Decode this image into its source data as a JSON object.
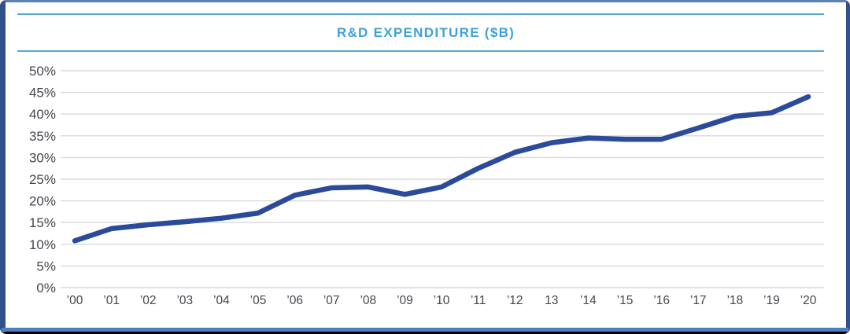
{
  "colors": {
    "title_blue": "#3FA0DC",
    "rule_blue": "#56A8D8",
    "line_navy": "#2B4A99",
    "grid_gray": "#D9D9DC",
    "label_slate": "#45454F",
    "frame_navy": "#34508C",
    "frame_steel_top": "#5B82B3",
    "frame_steel_bottom": "#4A7FC1",
    "frame_black": "#000000",
    "card_white": "#FFFFFF"
  },
  "chart_data": {
    "type": "line",
    "title": "R&D EXPENDITURE ($B)",
    "categories": [
      "’00",
      "’01",
      "’02",
      "’03",
      "’04",
      "’05",
      "’06",
      "’07",
      "’08",
      "’09",
      "’10",
      "’11",
      "’12",
      "13",
      "’14",
      "’15",
      "’16",
      "’17",
      "’18",
      "’19",
      "’20"
    ],
    "values": [
      10.8,
      13.6,
      14.5,
      15.2,
      16.0,
      17.2,
      21.3,
      23.0,
      23.2,
      21.5,
      23.2,
      27.5,
      31.2,
      33.4,
      34.5,
      34.2,
      34.2,
      36.8,
      39.5,
      40.3,
      44.0
    ],
    "series_name": "R&D Expenditure",
    "xlabel": "",
    "ylabel": "",
    "ylim": [
      0,
      50
    ],
    "ytick_step": 5,
    "ytick_suffix": "%",
    "yticks": [
      0,
      5,
      10,
      15,
      20,
      25,
      30,
      35,
      40,
      45,
      50
    ],
    "grid": "horizontal",
    "legend": "none"
  }
}
